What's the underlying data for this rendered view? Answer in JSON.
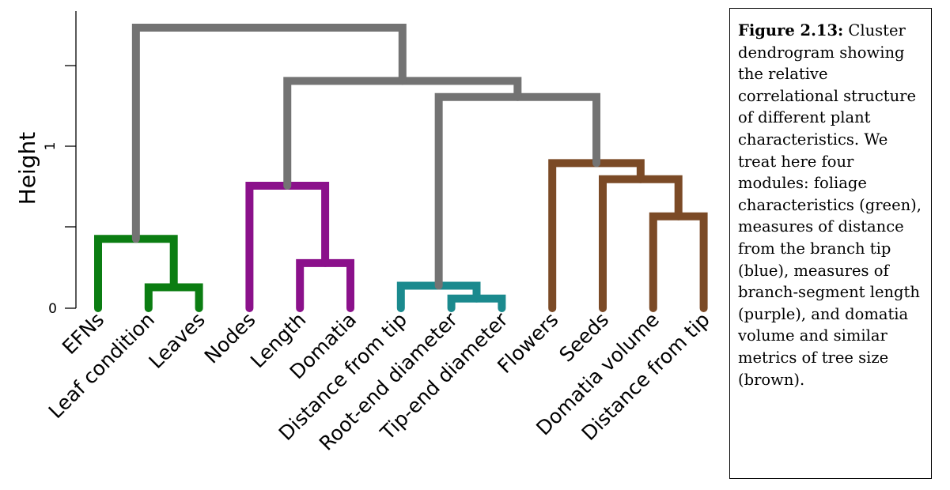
{
  "figure": {
    "axis": {
      "title": "Height",
      "ticks": [
        {
          "value": 0,
          "label": "0"
        },
        {
          "value": 1,
          "label": "1"
        }
      ]
    },
    "leaves": [
      {
        "id": "efns",
        "label": "EFNs"
      },
      {
        "id": "leaf-condition",
        "label": "Leaf condition"
      },
      {
        "id": "leaves",
        "label": "Leaves"
      },
      {
        "id": "nodes",
        "label": "Nodes"
      },
      {
        "id": "length",
        "label": "Length"
      },
      {
        "id": "domatia",
        "label": "Domatia"
      },
      {
        "id": "distance-from-tip-1",
        "label": "Distance from tip"
      },
      {
        "id": "root-end-diameter",
        "label": "Root-end diameter"
      },
      {
        "id": "tip-end-diameter",
        "label": "Tip-end diameter"
      },
      {
        "id": "flowers",
        "label": "Flowers"
      },
      {
        "id": "seeds",
        "label": "Seeds"
      },
      {
        "id": "domatia-volume",
        "label": "Domatia volume"
      },
      {
        "id": "distance-from-tip-2",
        "label": "Distance from tip"
      }
    ],
    "merges": [
      {
        "left": 2,
        "right": 3,
        "height": 0.13,
        "color": "#0b7d12"
      },
      {
        "left": 1,
        "right": "m1",
        "height": 0.43,
        "color": "#0b7d12"
      },
      {
        "left": 5,
        "right": 6,
        "height": 0.28,
        "color": "#8b118b"
      },
      {
        "left": 4,
        "right": "m3",
        "height": 0.76,
        "color": "#8b118b"
      },
      {
        "left": 8,
        "right": 9,
        "height": 0.06,
        "color": "#1b8a8e"
      },
      {
        "left": 7,
        "right": "m5",
        "height": 0.14,
        "color": "#1b8a8e"
      },
      {
        "left": 12,
        "right": 13,
        "height": 0.57,
        "color": "#7b4a26"
      },
      {
        "left": 11,
        "right": "m7",
        "height": 0.8,
        "color": "#7b4a26"
      },
      {
        "left": 10,
        "right": "m8",
        "height": 0.9,
        "color": "#7b4a26"
      },
      {
        "left": "m6",
        "right": "m9",
        "height": 1.31,
        "color": "#737373"
      },
      {
        "left": "m4",
        "right": "m10",
        "height": 1.41,
        "color": "#737373"
      },
      {
        "left": "m2",
        "right": "m11",
        "height": 1.74,
        "color": "#737373"
      }
    ]
  },
  "caption": {
    "label": "Figure 2.13:",
    "text": " Cluster dendrogram showing the relative correlational structure of different plant characteristics. We treat here four modules: foliage characteristics (green), measures of distance from the branch tip (blue), measures of branch-segment length (purple), and domatia volume and similar metrics of tree size (brown)."
  }
}
